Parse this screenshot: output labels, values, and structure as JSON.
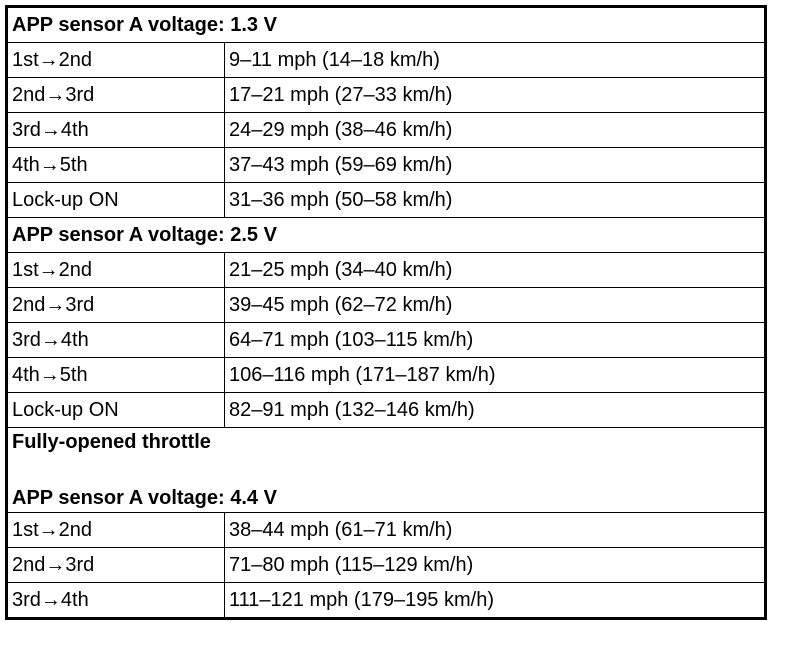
{
  "sections": [
    {
      "heading": [
        "APP sensor A voltage: 1.3 V"
      ],
      "rows": [
        [
          "1st→2nd",
          "9–11 mph (14–18 km/h)"
        ],
        [
          "2nd→3rd",
          "17–21 mph (27–33 km/h)"
        ],
        [
          "3rd→4th",
          "24–29 mph (38–46 km/h)"
        ],
        [
          "4th→5th",
          "37–43 mph (59–69 km/h)"
        ],
        [
          "Lock-up ON",
          "31–36 mph (50–58 km/h)"
        ]
      ]
    },
    {
      "heading": [
        "APP sensor A voltage: 2.5 V"
      ],
      "rows": [
        [
          "1st→2nd",
          "21–25 mph (34–40 km/h)"
        ],
        [
          "2nd→3rd",
          "39–45 mph (62–72 km/h)"
        ],
        [
          "3rd→4th",
          "64–71 mph (103–115 km/h)"
        ],
        [
          "4th→5th",
          "106–116 mph (171–187 km/h)"
        ],
        [
          "Lock-up ON",
          "82–91 mph (132–146 km/h)"
        ]
      ]
    },
    {
      "heading": [
        "Fully-opened throttle",
        "APP sensor A voltage: 4.4 V"
      ],
      "rows": [
        [
          "1st→2nd",
          "38–44 mph (61–71 km/h)"
        ],
        [
          "2nd→3rd",
          "71–80 mph (115–129 km/h)"
        ],
        [
          "3rd→4th",
          "111–121 mph (179–195 km/h)"
        ]
      ]
    }
  ]
}
